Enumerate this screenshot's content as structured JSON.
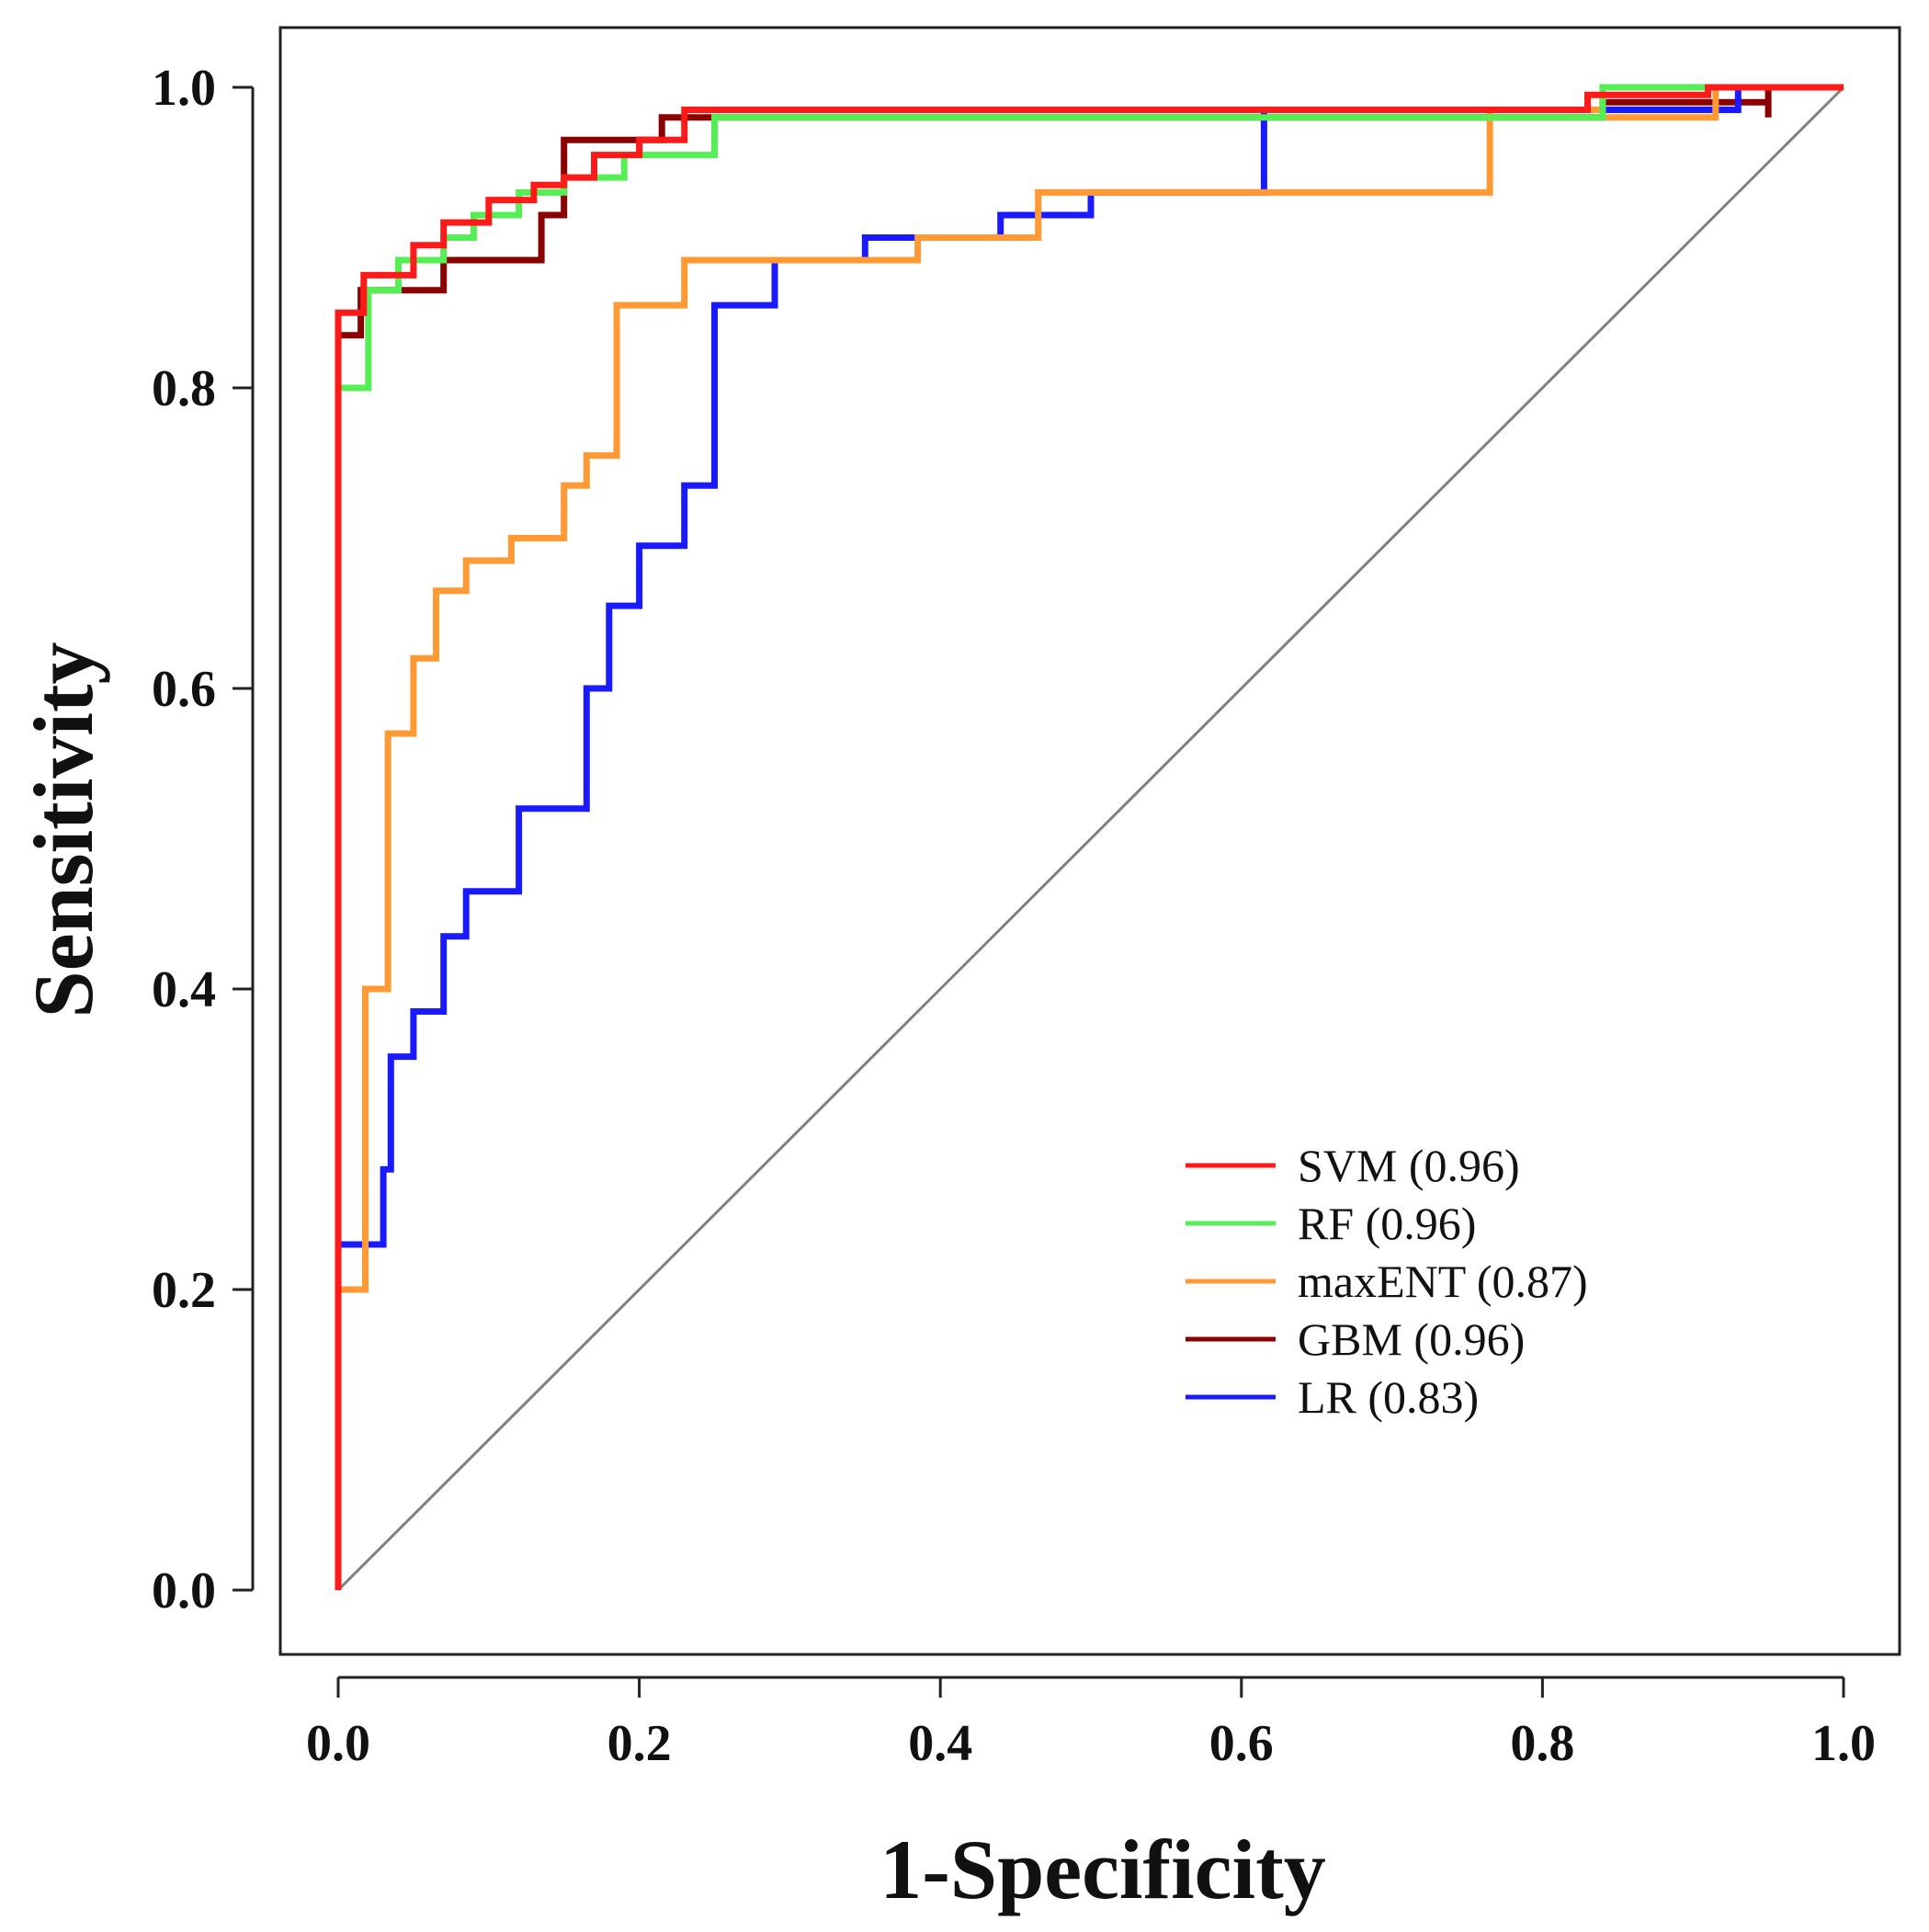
{
  "chart_data": {
    "type": "line",
    "xlabel": "1-Specificity",
    "ylabel": "Sensitivity",
    "xlim": [
      0.0,
      1.0
    ],
    "ylim": [
      0.0,
      1.0
    ],
    "x_ticks": [
      "0.0",
      "0.2",
      "0.4",
      "0.6",
      "0.8",
      "1.0"
    ],
    "y_ticks": [
      "0.0",
      "0.2",
      "0.4",
      "0.6",
      "0.8",
      "1.0"
    ],
    "grid": false,
    "legend_position": "bottom-right",
    "reference_line": {
      "from": [
        0,
        0
      ],
      "to": [
        1,
        1
      ],
      "color": "#808080"
    },
    "series": [
      {
        "name": "SVM (0.96)",
        "color": "#ff1a1a",
        "points": [
          [
            0,
            0
          ],
          [
            0,
            0.85
          ],
          [
            0.017,
            0.85
          ],
          [
            0.017,
            0.875
          ],
          [
            0.05,
            0.875
          ],
          [
            0.05,
            0.895
          ],
          [
            0.07,
            0.895
          ],
          [
            0.07,
            0.91
          ],
          [
            0.1,
            0.91
          ],
          [
            0.1,
            0.925
          ],
          [
            0.13,
            0.925
          ],
          [
            0.13,
            0.935
          ],
          [
            0.15,
            0.935
          ],
          [
            0.15,
            0.94
          ],
          [
            0.17,
            0.94
          ],
          [
            0.17,
            0.955
          ],
          [
            0.2,
            0.955
          ],
          [
            0.2,
            0.965
          ],
          [
            0.23,
            0.965
          ],
          [
            0.23,
            0.985
          ],
          [
            0.25,
            0.985
          ],
          [
            0.83,
            0.985
          ],
          [
            0.83,
            0.995
          ],
          [
            0.91,
            0.995
          ],
          [
            0.91,
            1.0
          ],
          [
            1.0,
            1.0
          ]
        ]
      },
      {
        "name": "RF (0.96)",
        "color": "#55ee55",
        "points": [
          [
            0,
            0
          ],
          [
            0,
            0.8
          ],
          [
            0.02,
            0.8
          ],
          [
            0.02,
            0.865
          ],
          [
            0.04,
            0.865
          ],
          [
            0.04,
            0.885
          ],
          [
            0.07,
            0.885
          ],
          [
            0.07,
            0.9
          ],
          [
            0.09,
            0.9
          ],
          [
            0.09,
            0.915
          ],
          [
            0.12,
            0.915
          ],
          [
            0.12,
            0.93
          ],
          [
            0.15,
            0.93
          ],
          [
            0.15,
            0.94
          ],
          [
            0.19,
            0.94
          ],
          [
            0.19,
            0.955
          ],
          [
            0.25,
            0.955
          ],
          [
            0.25,
            0.98
          ],
          [
            0.84,
            0.98
          ],
          [
            0.84,
            1.0
          ],
          [
            1.0,
            1.0
          ]
        ]
      },
      {
        "name": "maxENT (0.87)",
        "color": "#ff9933",
        "points": [
          [
            0,
            0
          ],
          [
            0,
            0.2
          ],
          [
            0.018,
            0.2
          ],
          [
            0.018,
            0.4
          ],
          [
            0.033,
            0.4
          ],
          [
            0.033,
            0.57
          ],
          [
            0.05,
            0.57
          ],
          [
            0.05,
            0.62
          ],
          [
            0.065,
            0.62
          ],
          [
            0.065,
            0.665
          ],
          [
            0.085,
            0.665
          ],
          [
            0.085,
            0.685
          ],
          [
            0.115,
            0.685
          ],
          [
            0.115,
            0.7
          ],
          [
            0.15,
            0.7
          ],
          [
            0.15,
            0.735
          ],
          [
            0.165,
            0.735
          ],
          [
            0.165,
            0.755
          ],
          [
            0.185,
            0.755
          ],
          [
            0.185,
            0.855
          ],
          [
            0.23,
            0.855
          ],
          [
            0.23,
            0.885
          ],
          [
            0.385,
            0.885
          ],
          [
            0.385,
            0.9
          ],
          [
            0.465,
            0.9
          ],
          [
            0.465,
            0.93
          ],
          [
            0.765,
            0.93
          ],
          [
            0.765,
            0.975
          ],
          [
            0.765,
            0.985
          ],
          [
            0.84,
            0.985
          ],
          [
            0.84,
            0.98
          ],
          [
            0.915,
            0.98
          ],
          [
            0.915,
            1.0
          ],
          [
            1.0,
            1.0
          ]
        ]
      },
      {
        "name": "GBM (0.96)",
        "color": "#8b0000",
        "points": [
          [
            0,
            0
          ],
          [
            0,
            0.835
          ],
          [
            0.015,
            0.835
          ],
          [
            0.015,
            0.865
          ],
          [
            0.07,
            0.865
          ],
          [
            0.07,
            0.885
          ],
          [
            0.135,
            0.885
          ],
          [
            0.135,
            0.915
          ],
          [
            0.15,
            0.915
          ],
          [
            0.15,
            0.965
          ],
          [
            0.215,
            0.965
          ],
          [
            0.215,
            0.98
          ],
          [
            0.84,
            0.98
          ],
          [
            0.84,
            0.99
          ],
          [
            0.95,
            0.99
          ],
          [
            0.95,
            0.98
          ],
          [
            0.95,
            1.0
          ],
          [
            1.0,
            1.0
          ]
        ]
      },
      {
        "name": "LR (0.83)",
        "color": "#1a1aff",
        "points": [
          [
            0,
            0
          ],
          [
            0,
            0.23
          ],
          [
            0.03,
            0.23
          ],
          [
            0.03,
            0.28
          ],
          [
            0.035,
            0.28
          ],
          [
            0.035,
            0.355
          ],
          [
            0.05,
            0.355
          ],
          [
            0.05,
            0.385
          ],
          [
            0.07,
            0.385
          ],
          [
            0.07,
            0.435
          ],
          [
            0.085,
            0.435
          ],
          [
            0.085,
            0.465
          ],
          [
            0.12,
            0.465
          ],
          [
            0.12,
            0.52
          ],
          [
            0.165,
            0.52
          ],
          [
            0.165,
            0.6
          ],
          [
            0.18,
            0.6
          ],
          [
            0.18,
            0.655
          ],
          [
            0.2,
            0.655
          ],
          [
            0.2,
            0.695
          ],
          [
            0.23,
            0.695
          ],
          [
            0.23,
            0.735
          ],
          [
            0.25,
            0.735
          ],
          [
            0.25,
            0.855
          ],
          [
            0.29,
            0.855
          ],
          [
            0.29,
            0.885
          ],
          [
            0.35,
            0.885
          ],
          [
            0.35,
            0.9
          ],
          [
            0.44,
            0.9
          ],
          [
            0.44,
            0.915
          ],
          [
            0.5,
            0.915
          ],
          [
            0.5,
            0.93
          ],
          [
            0.615,
            0.93
          ],
          [
            0.615,
            0.975
          ],
          [
            0.615,
            0.985
          ],
          [
            0.93,
            0.985
          ],
          [
            0.93,
            1.0
          ],
          [
            1.0,
            1.0
          ]
        ]
      }
    ]
  }
}
